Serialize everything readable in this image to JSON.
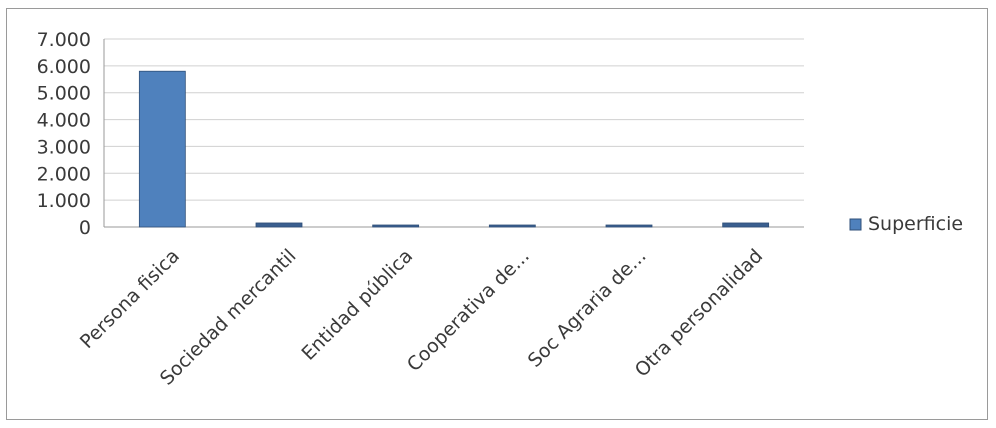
{
  "chart_data": {
    "type": "bar",
    "categories": [
      "Persona fisica",
      "Sociedad mercantil",
      "Entidad pública",
      "Cooperativa de...",
      "Soc Agraria de...",
      "Otra personalidad"
    ],
    "series": [
      {
        "name": "Superficie",
        "values": [
          5800,
          150,
          30,
          30,
          20,
          150
        ]
      }
    ],
    "ylim": [
      0,
      7000
    ],
    "yticks": [
      "0",
      "1.000",
      "2.000",
      "3.000",
      "4.000",
      "5.000",
      "6.000",
      "7.000"
    ],
    "ytick_values": [
      0,
      1000,
      2000,
      3000,
      4000,
      5000,
      6000,
      7000
    ],
    "grid": true,
    "legend_position": "right",
    "colors": {
      "bar": "#4f81bd",
      "bar_dark": "#3a5f8f",
      "grid": "#d0d0d0",
      "axis": "#9a9a9a"
    }
  }
}
